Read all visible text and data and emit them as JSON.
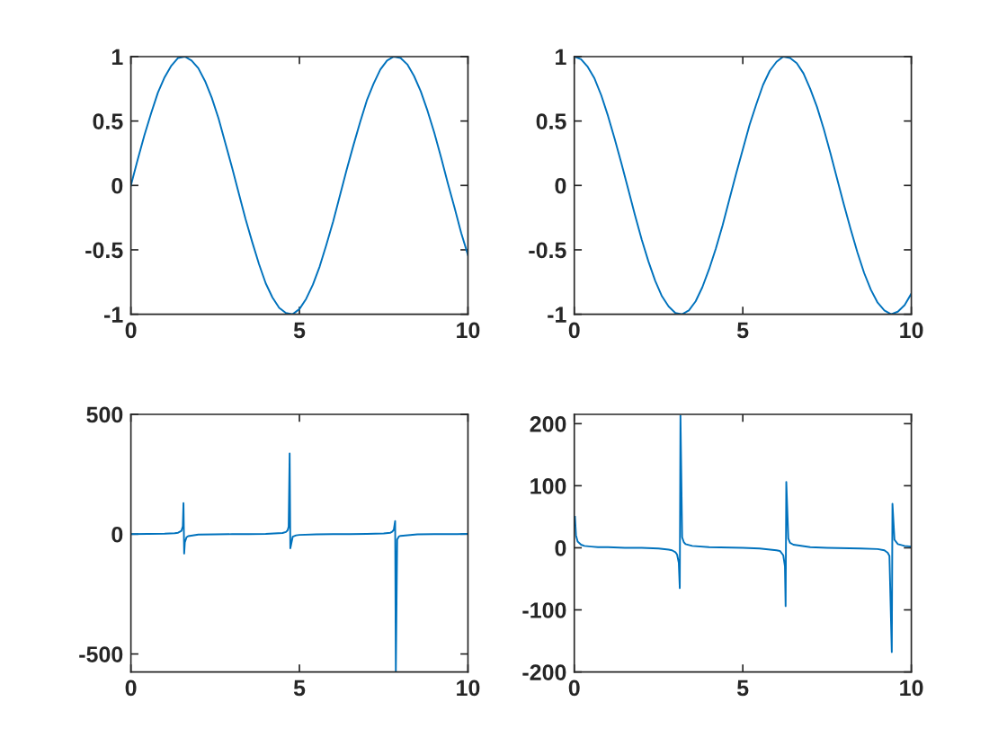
{
  "chart_data": [
    {
      "type": "line",
      "color": "#0072bd",
      "xlim": [
        0,
        10
      ],
      "ylim": [
        -1,
        1
      ],
      "xticks": [
        0,
        5,
        10
      ],
      "yticks": [
        -1,
        -0.5,
        0,
        0.5,
        1
      ],
      "x": [
        0,
        0.2,
        0.4,
        0.6,
        0.8,
        1.0,
        1.2,
        1.4,
        1.6,
        1.8,
        2.0,
        2.2,
        2.4,
        2.6,
        2.8,
        3.0,
        3.2,
        3.4,
        3.6,
        3.8,
        4.0,
        4.2,
        4.4,
        4.6,
        4.8,
        5.0,
        5.2,
        5.4,
        5.6,
        5.8,
        6.0,
        6.2,
        6.4,
        6.6,
        6.8,
        7.0,
        7.2,
        7.4,
        7.6,
        7.8,
        8.0,
        8.2,
        8.4,
        8.6,
        8.8,
        9.0,
        9.2,
        9.4,
        9.6,
        9.8,
        10.0
      ],
      "values": [
        0,
        0.2,
        0.39,
        0.56,
        0.72,
        0.84,
        0.93,
        0.99,
        1.0,
        0.97,
        0.91,
        0.81,
        0.68,
        0.52,
        0.33,
        0.14,
        -0.06,
        -0.26,
        -0.44,
        -0.61,
        -0.76,
        -0.87,
        -0.95,
        -0.99,
        -1.0,
        -0.96,
        -0.88,
        -0.77,
        -0.63,
        -0.46,
        -0.28,
        -0.08,
        0.12,
        0.31,
        0.49,
        0.66,
        0.79,
        0.9,
        0.97,
        1.0,
        0.99,
        0.94,
        0.85,
        0.73,
        0.58,
        0.41,
        0.22,
        0.02,
        -0.17,
        -0.37,
        -0.54
      ]
    },
    {
      "type": "line",
      "color": "#0072bd",
      "xlim": [
        0,
        10
      ],
      "ylim": [
        -1,
        1
      ],
      "xticks": [
        0,
        5,
        10
      ],
      "yticks": [
        -1,
        -0.5,
        0,
        0.5,
        1
      ],
      "x": [
        0,
        0.2,
        0.4,
        0.6,
        0.8,
        1.0,
        1.2,
        1.4,
        1.6,
        1.8,
        2.0,
        2.2,
        2.4,
        2.6,
        2.8,
        3.0,
        3.2,
        3.4,
        3.6,
        3.8,
        4.0,
        4.2,
        4.4,
        4.6,
        4.8,
        5.0,
        5.2,
        5.4,
        5.6,
        5.8,
        6.0,
        6.2,
        6.4,
        6.6,
        6.8,
        7.0,
        7.2,
        7.4,
        7.6,
        7.8,
        8.0,
        8.2,
        8.4,
        8.6,
        8.8,
        9.0,
        9.2,
        9.4,
        9.6,
        9.8,
        10.0
      ],
      "values": [
        1,
        0.98,
        0.92,
        0.83,
        0.7,
        0.54,
        0.36,
        0.17,
        -0.03,
        -0.23,
        -0.42,
        -0.59,
        -0.74,
        -0.86,
        -0.94,
        -0.99,
        -1.0,
        -0.97,
        -0.9,
        -0.79,
        -0.65,
        -0.49,
        -0.31,
        -0.11,
        0.09,
        0.28,
        0.47,
        0.63,
        0.78,
        0.89,
        0.96,
        1.0,
        0.99,
        0.95,
        0.87,
        0.75,
        0.61,
        0.44,
        0.25,
        0.05,
        -0.15,
        -0.34,
        -0.52,
        -0.68,
        -0.81,
        -0.91,
        -0.97,
        -1.0,
        -0.98,
        -0.93,
        -0.84
      ]
    },
    {
      "type": "line",
      "color": "#0072bd",
      "xlim": [
        0,
        10
      ],
      "ylim": [
        -575,
        500
      ],
      "xticks": [
        0,
        5,
        10
      ],
      "yticks": [
        -500,
        0,
        500
      ],
      "x": [
        0,
        0.5,
        1.0,
        1.3,
        1.4,
        1.5,
        1.54,
        1.56,
        1.58,
        1.6,
        1.65,
        1.7,
        2.0,
        2.5,
        3.0,
        3.5,
        4.0,
        4.5,
        4.6,
        4.65,
        4.68,
        4.71,
        4.73,
        4.8,
        4.9,
        5.0,
        5.5,
        6.0,
        6.5,
        7.0,
        7.5,
        7.7,
        7.75,
        7.8,
        7.84,
        7.86,
        7.9,
        7.95,
        8.0,
        8.5,
        9.0,
        9.5,
        10.0
      ],
      "values": [
        0,
        1,
        2,
        4,
        6,
        14,
        33,
        130,
        -81,
        -34,
        -13,
        -8,
        -2,
        -1,
        0,
        0,
        1,
        5,
        9,
        16,
        31,
        337,
        -59,
        -11,
        -5,
        -3,
        -1,
        0,
        0,
        1,
        3,
        6,
        10,
        18,
        55,
        -575,
        -22,
        -10,
        -7,
        -1,
        0,
        0,
        1
      ]
    },
    {
      "type": "line",
      "color": "#0072bd",
      "xlim": [
        0,
        10
      ],
      "ylim": [
        -200,
        215
      ],
      "xticks": [
        0,
        5,
        10
      ],
      "yticks": [
        -200,
        -100,
        0,
        100,
        200
      ],
      "x": [
        0.02,
        0.05,
        0.1,
        0.2,
        0.3,
        0.5,
        0.7,
        1.0,
        1.5,
        2.0,
        2.5,
        2.8,
        2.9,
        3.0,
        3.05,
        3.1,
        3.13,
        3.15,
        3.2,
        3.25,
        3.3,
        3.5,
        4.0,
        5.0,
        5.5,
        6.0,
        6.1,
        6.2,
        6.25,
        6.27,
        6.29,
        6.35,
        6.4,
        6.5,
        7.0,
        7.5,
        8.5,
        9.0,
        9.2,
        9.3,
        9.35,
        9.42,
        9.44,
        9.5,
        9.6,
        9.8,
        10.0
      ],
      "values": [
        50,
        20,
        10,
        5,
        3,
        2,
        1,
        1,
        0,
        0,
        -1,
        -3,
        -4,
        -7,
        -11,
        -24,
        -65,
        213,
        17,
        9,
        6,
        3,
        1,
        0,
        -1,
        -4,
        -5,
        -12,
        -30,
        -94,
        106,
        15,
        8,
        5,
        1,
        0,
        -1,
        -2,
        -4,
        -8,
        -13,
        -168,
        71,
        13,
        6,
        3,
        2
      ]
    }
  ]
}
